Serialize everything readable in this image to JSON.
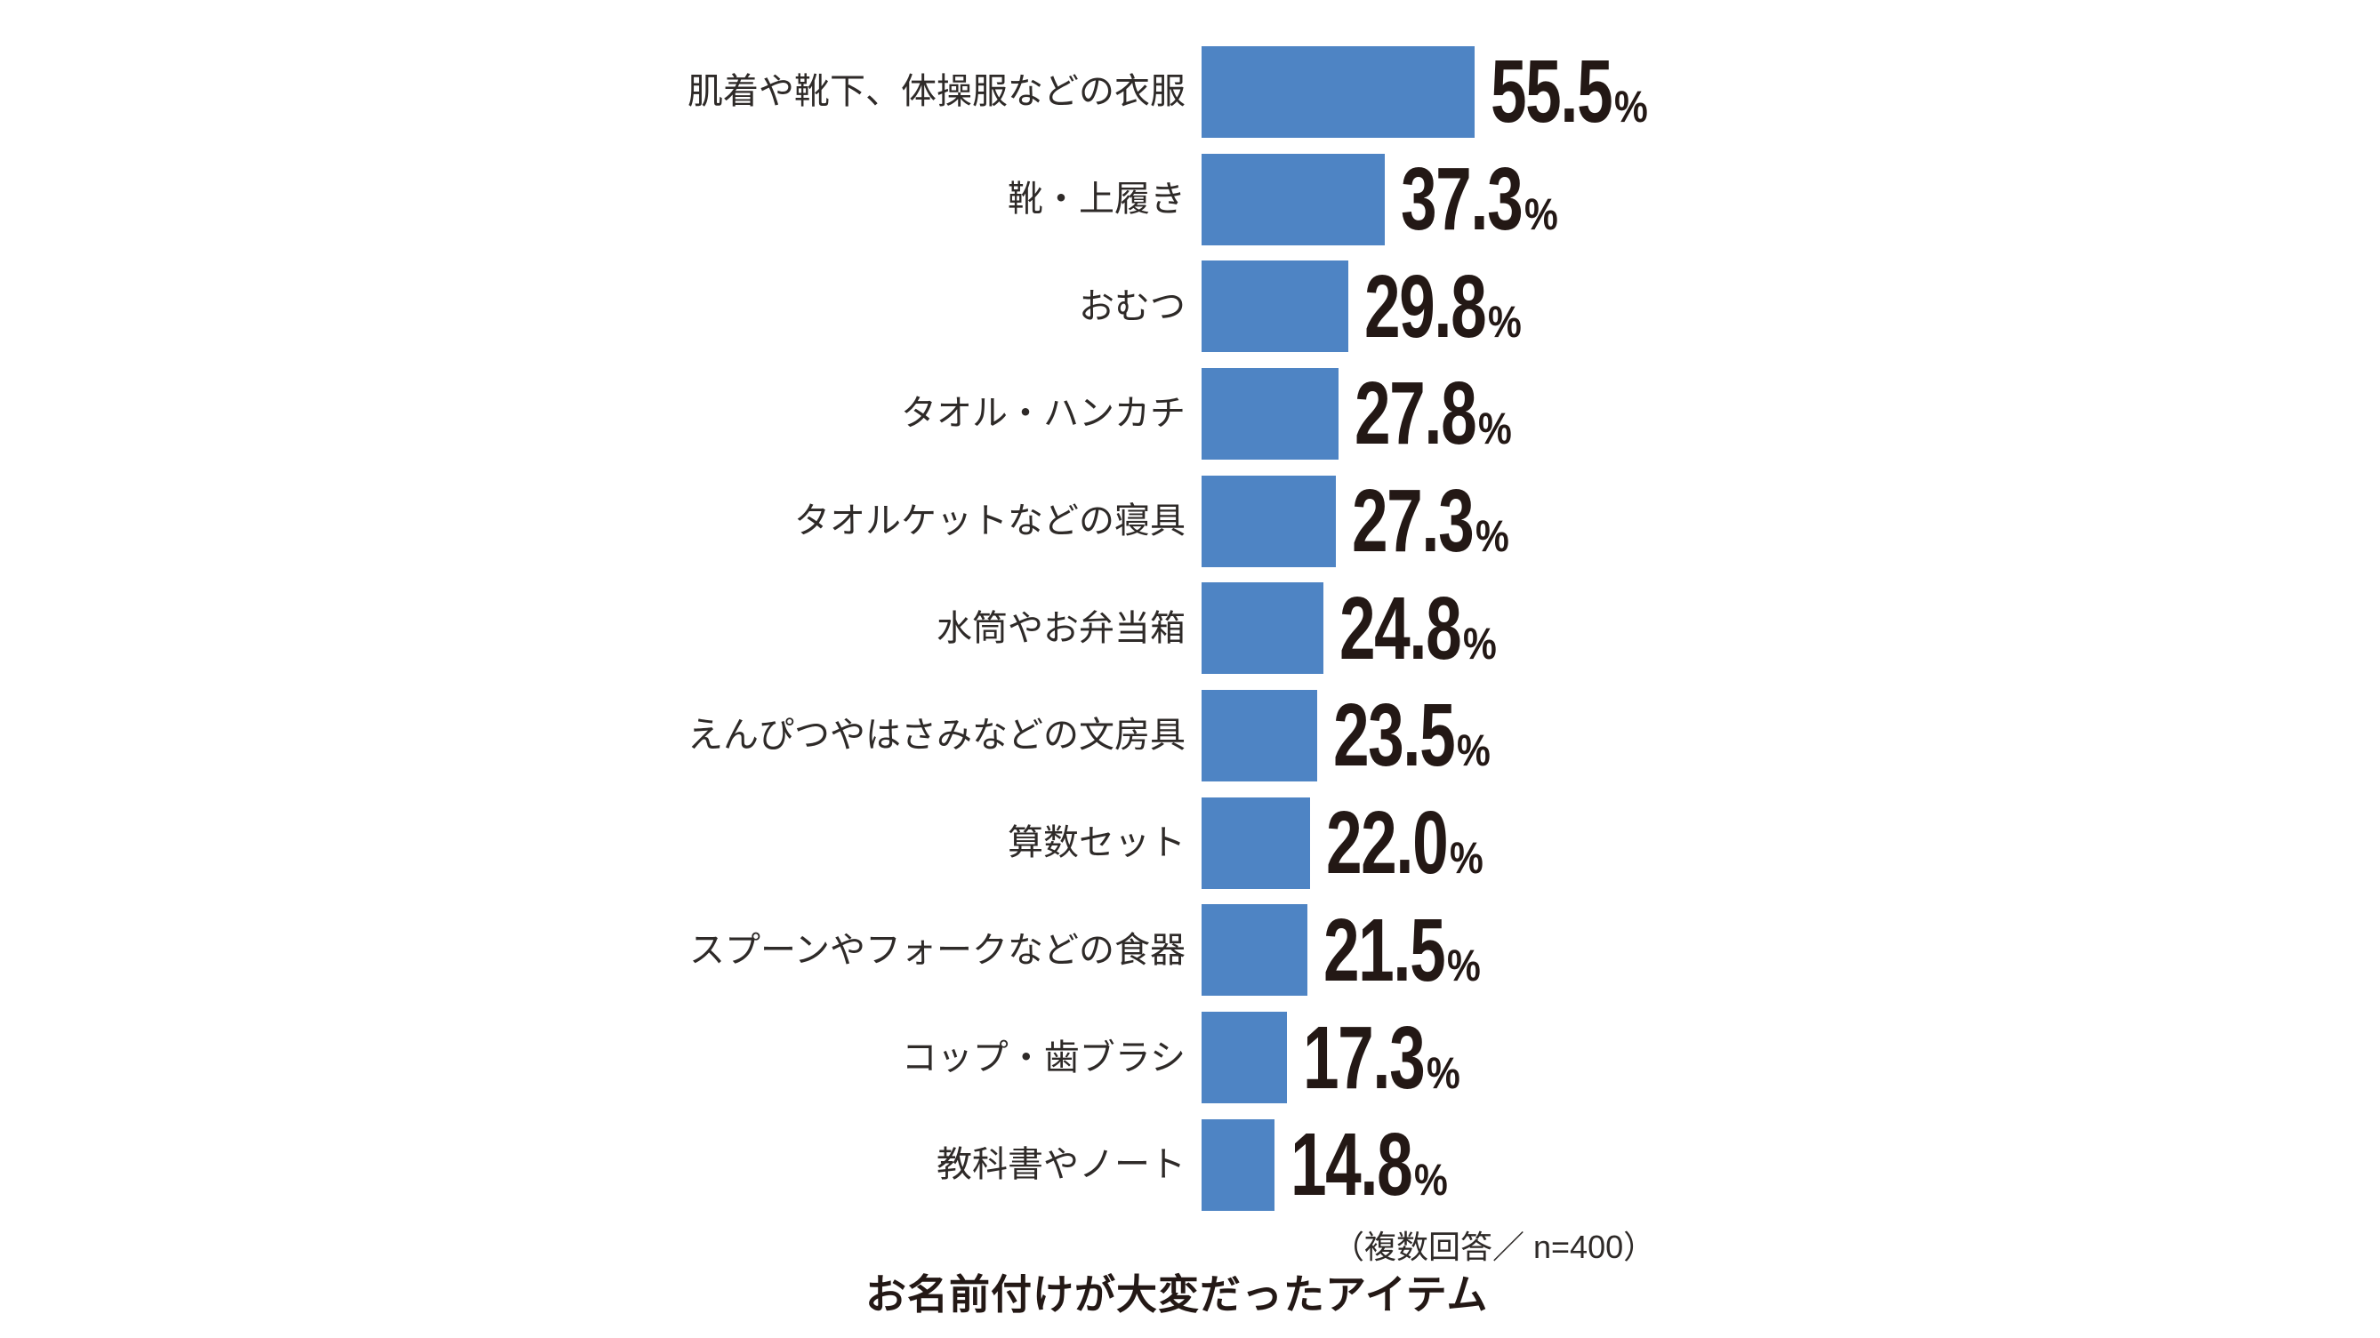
{
  "chart_data": {
    "type": "bar",
    "orientation": "horizontal",
    "title": "お名前付けが大変だったアイテム",
    "note": "（複数回答／ n=400）",
    "unit": "%",
    "xlim": [
      0,
      60
    ],
    "bar_color": "#4E84C4",
    "grid": false,
    "legend": false,
    "categories": [
      "肌着や靴下、体操服などの衣服",
      "靴・上履き",
      "おむつ",
      "タオル・ハンカチ",
      "タオルケットなどの寝具",
      "水筒やお弁当箱",
      "えんぴつやはさみなどの文房具",
      "算数セット",
      "スプーンやフォークなどの食器",
      "コップ・歯ブラシ",
      "教科書やノート"
    ],
    "values": [
      55.5,
      37.3,
      29.8,
      27.8,
      27.3,
      24.8,
      23.5,
      22.0,
      21.5,
      17.3,
      14.8
    ],
    "value_labels": [
      "55.5",
      "37.3",
      "29.8",
      "27.8",
      "27.3",
      "24.8",
      "23.5",
      "22.0",
      "21.5",
      "17.3",
      "14.8"
    ]
  },
  "colors": {
    "bar": "#4E84C4",
    "value_text": "#231815",
    "label_text": "#2e2a28",
    "background": "#ffffff"
  }
}
